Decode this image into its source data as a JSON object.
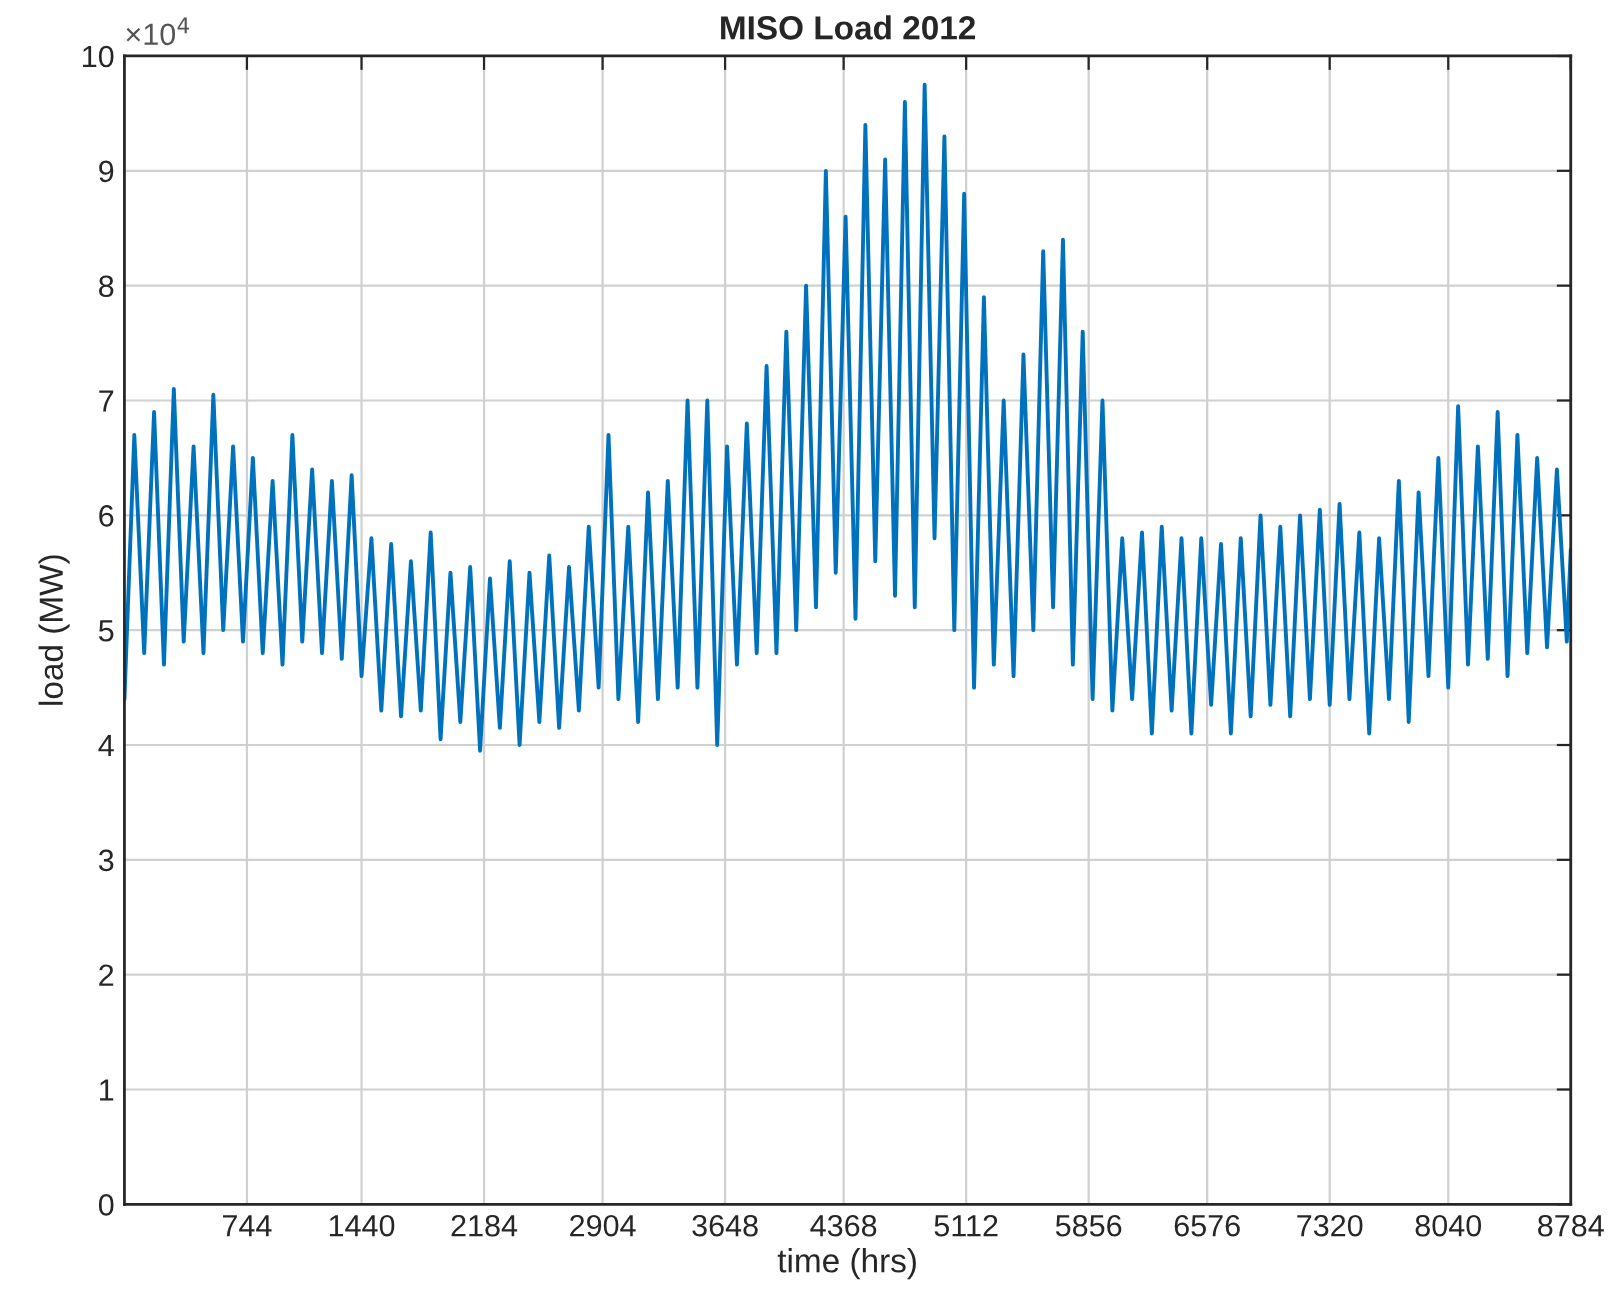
{
  "chart_data": {
    "type": "line",
    "title": "MISO Load 2012",
    "xlabel": "time (hrs)",
    "ylabel": "load (MW)",
    "annotations": [
      "×10$^{4}$"
    ],
    "x": [
      0,
      60,
      120,
      180,
      240,
      300,
      360,
      420,
      480,
      540,
      600,
      660,
      720,
      780,
      840,
      900,
      960,
      1020,
      1080,
      1140,
      1200,
      1260,
      1320,
      1380,
      1440,
      1500,
      1560,
      1620,
      1680,
      1740,
      1800,
      1860,
      1920,
      1980,
      2040,
      2100,
      2160,
      2220,
      2280,
      2340,
      2400,
      2460,
      2520,
      2580,
      2640,
      2700,
      2760,
      2820,
      2880,
      2940,
      3000,
      3060,
      3120,
      3180,
      3240,
      3300,
      3360,
      3420,
      3480,
      3540,
      3600,
      3660,
      3720,
      3780,
      3840,
      3900,
      3960,
      4020,
      4080,
      4140,
      4200,
      4260,
      4320,
      4380,
      4440,
      4500,
      4560,
      4620,
      4680,
      4740,
      4800,
      4860,
      4920,
      4980,
      5040,
      5100,
      5160,
      5220,
      5280,
      5340,
      5400,
      5460,
      5520,
      5580,
      5640,
      5700,
      5760,
      5820,
      5880,
      5940,
      6000,
      6060,
      6120,
      6180,
      6240,
      6300,
      6360,
      6420,
      6480,
      6540,
      6600,
      6660,
      6720,
      6780,
      6840,
      6900,
      6960,
      7020,
      7080,
      7140,
      7200,
      7260,
      7320,
      7380,
      7440,
      7500,
      7560,
      7620,
      7680,
      7740,
      7800,
      7860,
      7920,
      7980,
      8040,
      8100,
      8160,
      8220,
      8280,
      8340,
      8400,
      8460,
      8520,
      8580,
      8640,
      8700,
      8760,
      8784
    ],
    "series": [
      {
        "color": "#0072bd",
        "values": [
          4.4,
          6.7,
          4.8,
          6.9,
          4.7,
          7.1,
          4.9,
          6.6,
          4.8,
          7.05,
          5.0,
          6.6,
          4.9,
          6.5,
          4.8,
          6.3,
          4.7,
          6.7,
          4.9,
          6.4,
          4.8,
          6.3,
          4.75,
          6.35,
          4.6,
          5.8,
          4.3,
          5.75,
          4.25,
          5.6,
          4.3,
          5.85,
          4.05,
          5.5,
          4.2,
          5.55,
          3.95,
          5.45,
          4.15,
          5.6,
          4.0,
          5.5,
          4.2,
          5.65,
          4.15,
          5.55,
          4.3,
          5.9,
          4.5,
          6.7,
          4.4,
          5.9,
          4.2,
          6.2,
          4.4,
          6.3,
          4.5,
          7.0,
          4.5,
          7.0,
          4.0,
          6.6,
          4.7,
          6.8,
          4.8,
          7.3,
          4.8,
          7.6,
          5.0,
          8.0,
          5.2,
          9.0,
          5.5,
          8.6,
          5.1,
          9.4,
          5.6,
          9.1,
          5.3,
          9.6,
          5.2,
          9.75,
          5.8,
          9.3,
          5.0,
          8.8,
          4.5,
          7.9,
          4.7,
          7.0,
          4.6,
          7.4,
          5.0,
          8.3,
          5.2,
          8.4,
          4.7,
          7.6,
          4.4,
          7.0,
          4.3,
          5.8,
          4.4,
          5.85,
          4.1,
          5.9,
          4.3,
          5.8,
          4.1,
          5.8,
          4.35,
          5.75,
          4.1,
          5.8,
          4.25,
          6.0,
          4.35,
          5.9,
          4.25,
          6.0,
          4.4,
          6.05,
          4.35,
          6.1,
          4.4,
          5.85,
          4.1,
          5.8,
          4.4,
          6.3,
          4.2,
          6.2,
          4.6,
          6.5,
          4.5,
          6.95,
          4.7,
          6.6,
          4.75,
          6.9,
          4.6,
          6.7,
          4.8,
          6.5,
          4.85,
          6.4,
          4.9,
          5.7
        ]
      }
    ],
    "xlim": [
      0,
      8784
    ],
    "xticks": [
      744,
      1440,
      2184,
      2904,
      3648,
      4368,
      5112,
      5856,
      6576,
      7320,
      8040,
      8784
    ],
    "ylim": [
      0,
      10
    ],
    "yticks": [
      0,
      1,
      2,
      3,
      4,
      5,
      6,
      7,
      8,
      9,
      10
    ],
    "grid": true
  }
}
